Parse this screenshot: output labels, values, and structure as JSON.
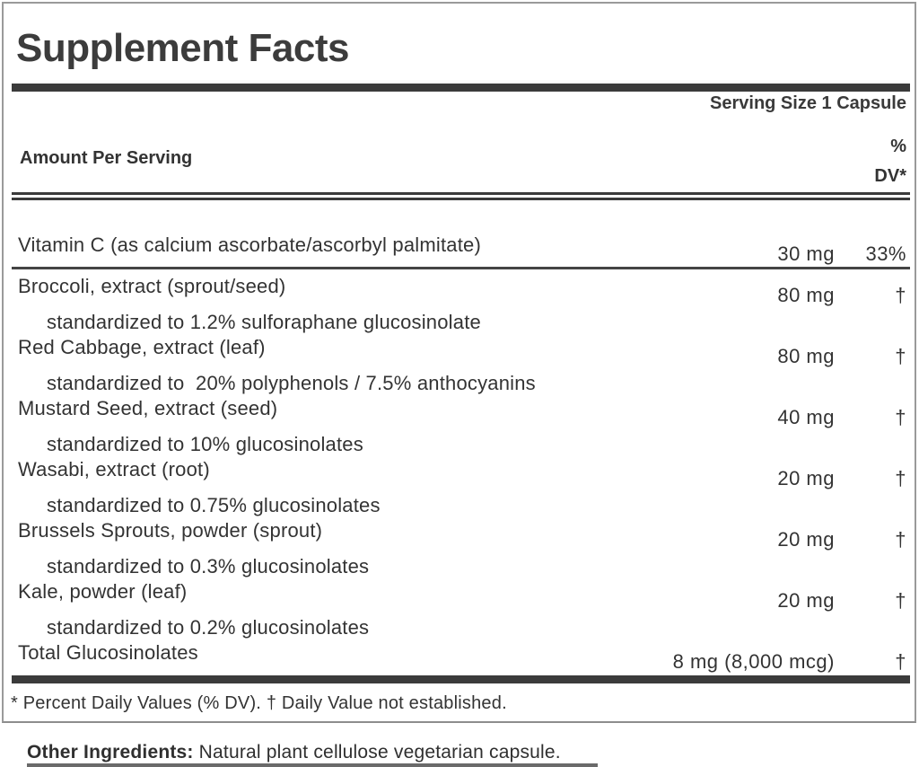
{
  "panel": {
    "title": "Supplement Facts",
    "serving_size": "Serving Size 1 Capsule",
    "header": {
      "amount_label": "Amount Per Serving",
      "dv_line1": "%",
      "dv_line2": "DV*"
    },
    "rows": [
      {
        "name": "Vitamin C (as calcium ascorbate/ascorbyl palmitate)",
        "amount": "30 mg",
        "dv": "33%"
      },
      {
        "name": "Broccoli, extract (sprout/seed)",
        "amount": "80 mg",
        "dv": "†",
        "detail": "standardized to 1.2% sulforaphane glucosinolate"
      },
      {
        "name": "Red Cabbage, extract (leaf)",
        "amount": "80 mg",
        "dv": "†",
        "detail": "standardized to  20% polyphenols / 7.5% anthocyanins"
      },
      {
        "name": "Mustard Seed, extract (seed)",
        "amount": "40 mg",
        "dv": "†",
        "detail": "standardized to 10% glucosinolates"
      },
      {
        "name": "Wasabi, extract (root)",
        "amount": "20 mg",
        "dv": "†",
        "detail": "standardized to 0.75% glucosinolates"
      },
      {
        "name": "Brussels Sprouts, powder (sprout)",
        "amount": "20 mg",
        "dv": "†",
        "detail": "standardized to 0.3% glucosinolates"
      },
      {
        "name": "Kale, powder (leaf)",
        "amount": "20 mg",
        "dv": "†",
        "detail": "standardized to 0.2% glucosinolates"
      },
      {
        "name": "Total Glucosinolates",
        "amount": "8 mg (8,000 mcg)",
        "dv": "†"
      }
    ],
    "footnote": "* Percent Daily Values (% DV). † Daily Value not established."
  },
  "other_ingredients": {
    "label": "Other Ingredients:",
    "text": " Natural plant cellulose vegetarian capsule."
  },
  "colors": {
    "ink": "#3b3b3b",
    "border": "#9a9a9a",
    "background": "#ffffff"
  }
}
